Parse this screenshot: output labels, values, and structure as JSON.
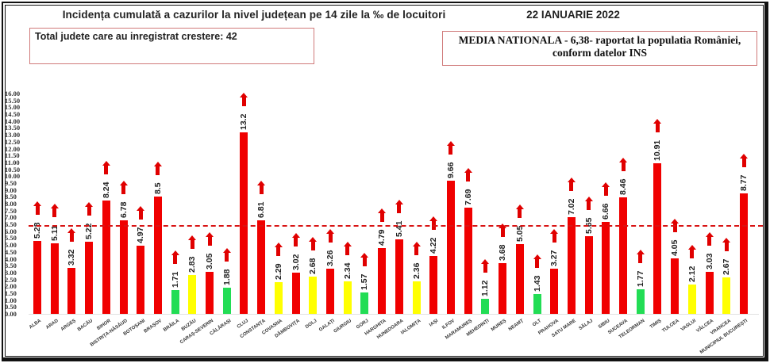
{
  "header": {
    "title": "Incidența cumulată a cazurilor la nivel județean pe 14 zile la ‰ de locuitori",
    "date": "22 IANUARIE 2022"
  },
  "info_boxes": {
    "total_increase": "Total judete care au inregistrat crestere: 42",
    "national_average_line1": "MEDIA NATIONALA - 6,38-  raportat la populatia României,",
    "national_average_line2": "conform datelor INS"
  },
  "colors": {
    "red": "#f00000",
    "yellow": "#ffff00",
    "green": "#22dd55",
    "avg_line": "#d81414",
    "arrow": "#e00000"
  },
  "chart_data": {
    "type": "bar",
    "title": "Incidența cumulată a cazurilor la nivel județean pe 14 zile la ‰ de locuitori",
    "subtitle": "22 IANUARIE 2022",
    "xlabel": "",
    "ylabel": "",
    "ylim": [
      0,
      16
    ],
    "y_ticks": [
      "16.00",
      "15.50",
      "15.00",
      "14.50",
      "14.00",
      "13.50",
      "13.00",
      "12.50",
      "12.00",
      "11.50",
      "11.00",
      "10.50",
      "10.00",
      "9.50",
      "9.00",
      "8.50",
      "8.00",
      "7.50",
      "7.00",
      "6.50",
      "6.00",
      "5.50",
      "5.00",
      "4.50",
      "4.00",
      "3.50",
      "3.00",
      "2.50",
      "2.00",
      "1.50",
      "1.00",
      "0.50",
      "0.00"
    ],
    "grid": false,
    "legend": "none",
    "reference_line": {
      "label": "MEDIA NATIONALA",
      "value": 6.38,
      "style": "dashed",
      "color": "#d81414"
    },
    "annotations": "Red up-arrow above every bar indicates an increase (42 counties)",
    "color_rule_note": "Bar color scale (green / yellow / red) is inferred from the pattern of values; the chart shows no legend stating the exact thresholds.",
    "categories": [
      "ALBA",
      "ARAD",
      "ARGEȘ",
      "BACĂU",
      "BIHOR",
      "BISTRIȚA-NĂSĂUD",
      "BOTOȘANI",
      "BRAȘOV",
      "BRĂILA",
      "BUZĂU",
      "CARAȘ-SEVERIN",
      "CĂLĂRAȘI",
      "CLUJ",
      "CONSTANȚA",
      "COVASNA",
      "DÂMBOVIȚA",
      "DOLJ",
      "GALAȚI",
      "GIURGIU",
      "GORJ",
      "HARGHITA",
      "HUNEDOARA",
      "IALOMIȚA",
      "IAȘI",
      "ILFOV",
      "MARAMUREȘ",
      "MEHEDINȚI",
      "MUREȘ",
      "NEAMȚ",
      "OLT",
      "PRAHOVA",
      "SATU MARE",
      "SĂLAJ",
      "SIBIU",
      "SUCEAVA",
      "TELEORMAN",
      "TIMIȘ",
      "TULCEA",
      "VASLUI",
      "VÂLCEA",
      "VRANCEA",
      "MUNICIPIUL BUCUREȘTI"
    ],
    "values": [
      5.28,
      5.11,
      3.32,
      5.22,
      8.24,
      6.78,
      4.97,
      8.5,
      1.71,
      2.83,
      3.05,
      1.88,
      13.2,
      6.81,
      2.29,
      3.02,
      2.68,
      3.26,
      2.34,
      1.57,
      4.79,
      5.41,
      2.36,
      4.22,
      9.66,
      7.69,
      1.12,
      3.68,
      5.05,
      1.43,
      3.27,
      7.02,
      5.65,
      6.66,
      8.46,
      1.77,
      10.91,
      4.05,
      2.12,
      3.03,
      2.67,
      8.77
    ],
    "value_labels": [
      "5.28",
      "5.11",
      "3.32",
      "5.22",
      "8.24",
      "6.78",
      "4.97",
      "8.5",
      "1.71",
      "2.83",
      "3.05",
      "1.88",
      "13.2",
      "6.81",
      "2.29",
      "3.02",
      "2.68",
      "3.26",
      "2.34",
      "1.57",
      "4.79",
      "5.41",
      "2.36",
      "4.22",
      "9.66",
      "7.69",
      "1.12",
      "3.68",
      "5.05",
      "1.43",
      "3.27",
      "7.02",
      "5.65",
      "6.66",
      "8.46",
      "1.77",
      "10.91",
      "4.05",
      "2.12",
      "3.03",
      "2.67",
      "8.77"
    ],
    "bar_colors": [
      "red",
      "red",
      "red",
      "red",
      "red",
      "red",
      "red",
      "red",
      "green",
      "yellow",
      "red",
      "green",
      "red",
      "red",
      "yellow",
      "red",
      "yellow",
      "red",
      "yellow",
      "green",
      "red",
      "red",
      "yellow",
      "red",
      "red",
      "red",
      "green",
      "red",
      "red",
      "green",
      "red",
      "red",
      "red",
      "red",
      "red",
      "green",
      "red",
      "red",
      "yellow",
      "red",
      "yellow",
      "red"
    ],
    "trend": "increase"
  }
}
